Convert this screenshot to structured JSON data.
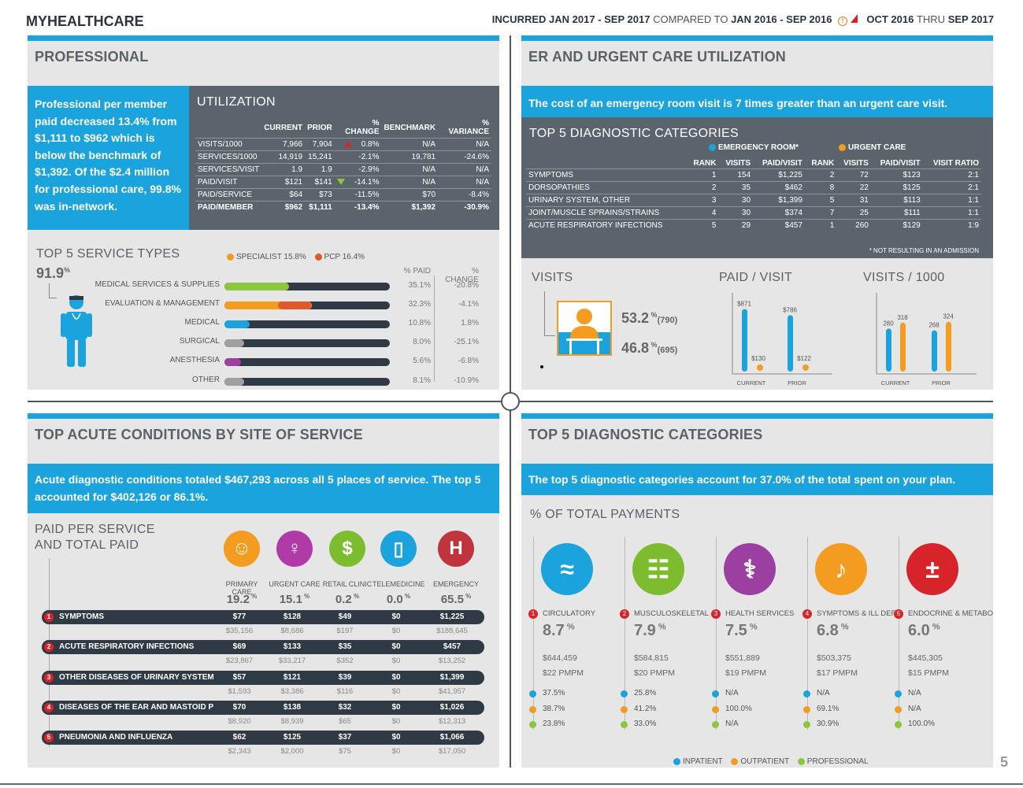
{
  "header": {
    "brand": "MYHEALTHCARE",
    "incurred_label": "INCURRED",
    "incurred_range": "JAN 2017 - SEP 2017",
    "compared_to": "COMPARED TO",
    "compare_range": "JAN 2016 - SEP 2016",
    "paid_start": "OCT 2016",
    "thru": "THRU",
    "paid_end": "SEP 2017",
    "page_number": "5"
  },
  "colors": {
    "accent": "#1aa3dc",
    "dark": "#5b646c",
    "navy": "#2f3a45",
    "red": "#d6242a",
    "orange": "#f39c1f",
    "green": "#8cc63f"
  },
  "professional": {
    "title": "PROFESSIONAL",
    "summary": "Professional per member paid decreased 13.4% from $1,111 to $962 which is below the benchmark of $1,392. Of the $2.4 million for professional care, 99.8% was in-network.",
    "utilization_title": "UTILIZATION",
    "headers": [
      "",
      "CURRENT",
      "PRIOR",
      "% CHANGE",
      "BENCHMARK",
      "% VARIANCE"
    ],
    "rows": [
      {
        "label": "VISITS/1000",
        "current": "7,966",
        "prior": "7,904",
        "change": "0.8%",
        "benchmark": "N/A",
        "variance": "N/A"
      },
      {
        "label": "SERVICES/1000",
        "current": "14,919",
        "prior": "15,241",
        "change": "-2.1%",
        "benchmark": "19,781",
        "variance": "-24.6%"
      },
      {
        "label": "SERVICES/VISIT",
        "current": "1.9",
        "prior": "1.9",
        "change": "-2.9%",
        "benchmark": "N/A",
        "variance": "N/A"
      },
      {
        "label": "PAID/VISIT",
        "current": "$121",
        "prior": "$141",
        "change": "-14.1%",
        "benchmark": "N/A",
        "variance": "N/A"
      },
      {
        "label": "PAID/SERVICE",
        "current": "$64",
        "prior": "$73",
        "change": "-11.5%",
        "benchmark": "$70",
        "variance": "-8.4%"
      },
      {
        "label": "PAID/MEMBER",
        "current": "$962",
        "prior": "$1,111",
        "change": "-13.4%",
        "benchmark": "$1,392",
        "variance": "-30.9%"
      }
    ],
    "service_types_title": "TOP 5 SERVICE TYPES",
    "service_pct": "91.9",
    "pct_sign": "%",
    "legend_specialist": "SPECIALIST 15.8%",
    "legend_pcp": "PCP 16.4%",
    "col_paid": "% PAID",
    "col_change": "% CHANGE",
    "services": [
      {
        "label": "MEDICAL SERVICES & SUPPLIES",
        "paid": "35.1%",
        "change": "-20.8%",
        "fill": 0.39,
        "color": "#8cc63f"
      },
      {
        "label": "EVALUATION & MANAGEMENT",
        "paid": "32.3%",
        "change": "-4.1%",
        "fill": 0.53,
        "color": "#f39c1f"
      },
      {
        "label": "MEDICAL",
        "paid": "10.8%",
        "change": "1.8%",
        "fill": 0.15,
        "color": "#1aa3dc"
      },
      {
        "label": "SURGICAL",
        "paid": "8.0%",
        "change": "-25.1%",
        "fill": 0.12,
        "color": "#a0a0a0"
      },
      {
        "label": "ANESTHESIA",
        "paid": "5.6%",
        "change": "-6.8%",
        "fill": 0.1,
        "color": "#9b3fa0"
      },
      {
        "label": "OTHER",
        "paid": "8.1%",
        "change": "-10.9%",
        "fill": 0.12,
        "color": "#a0a0a0"
      }
    ]
  },
  "er": {
    "title": "ER AND URGENT CARE UTILIZATION",
    "summary": "The cost of an emergency room visit is 7 times greater than an urgent care visit.",
    "diag_title": "TOP 5 DIAGNOSTIC CATEGORIES",
    "legend_er": "EMERGENCY ROOM*",
    "legend_uc": "URGENT CARE",
    "headers": [
      "",
      "RANK",
      "VISITS",
      "PAID/VISIT",
      "RANK",
      "VISITS",
      "PAID/VISIT",
      "VISIT RATIO"
    ],
    "rows": [
      {
        "label": "SYMPTOMS",
        "er_rank": "1",
        "er_visits": "154",
        "er_paid": "$1,225",
        "uc_rank": "2",
        "uc_visits": "72",
        "uc_paid": "$123",
        "ratio": "2:1"
      },
      {
        "label": "DORSOPATHIES",
        "er_rank": "2",
        "er_visits": "35",
        "er_paid": "$462",
        "uc_rank": "8",
        "uc_visits": "22",
        "uc_paid": "$125",
        "ratio": "2:1"
      },
      {
        "label": "URINARY SYSTEM, OTHER",
        "er_rank": "3",
        "er_visits": "30",
        "er_paid": "$1,399",
        "uc_rank": "5",
        "uc_visits": "31",
        "uc_paid": "$113",
        "ratio": "1:1"
      },
      {
        "label": "JOINT/MUSCLE SPRAINS/STRAINS",
        "er_rank": "4",
        "er_visits": "30",
        "er_paid": "$374",
        "uc_rank": "7",
        "uc_visits": "25",
        "uc_paid": "$111",
        "ratio": "1:1"
      },
      {
        "label": "ACUTE RESPIRATORY INFECTIONS",
        "er_rank": "5",
        "er_visits": "29",
        "er_paid": "$457",
        "uc_rank": "1",
        "uc_visits": "260",
        "uc_paid": "$129",
        "ratio": "1:9"
      }
    ],
    "footnote": "* NOT RESULTING IN AN ADMISSION",
    "visits_title": "VISITS",
    "visits_top": "53.2",
    "visits_top_count": "(790)",
    "visits_bottom": "46.8",
    "visits_bottom_count": "(695)",
    "paid_title": "PAID / VISIT",
    "per1000_title": "VISITS / 1000",
    "current_label": "CURRENT",
    "prior_label": "PRIOR"
  },
  "chart_data": [
    {
      "type": "bar",
      "title": "PAID / VISIT",
      "categories": [
        "CURRENT",
        "PRIOR"
      ],
      "series": [
        {
          "name": "EMERGENCY ROOM",
          "values": [
            871,
            786
          ]
        },
        {
          "name": "URGENT CARE",
          "values": [
            130,
            122
          ]
        }
      ],
      "labels": [
        [
          "$871",
          "$786"
        ],
        [
          "$130",
          "$122"
        ]
      ]
    },
    {
      "type": "bar",
      "title": "VISITS / 1000",
      "categories": [
        "CURRENT",
        "PRIOR"
      ],
      "series": [
        {
          "name": "EMERGENCY ROOM",
          "values": [
            280,
            268
          ]
        },
        {
          "name": "URGENT CARE",
          "values": [
            318,
            324
          ]
        }
      ]
    }
  ],
  "acute": {
    "title": "TOP ACUTE CONDITIONS BY SITE OF SERVICE",
    "summary": "Acute diagnostic conditions totaled $467,293 across all 5 places of service. The top 5 accounted for $402,126 or 86.1%.",
    "paid_title_1": "PAID PER SERVICE",
    "paid_title_2": "AND TOTAL PAID",
    "sites": [
      {
        "name": "PRIMARY CARE",
        "pct": "19.2",
        "color": "#f39c1f",
        "icon": "doctor-icon"
      },
      {
        "name": "URGENT CARE",
        "pct": "15.1",
        "color": "#b03aa6",
        "icon": "nurse-icon"
      },
      {
        "name": "RETAIL CLINIC",
        "pct": "0.2",
        "color": "#7dbb2f",
        "icon": "dollar-icon"
      },
      {
        "name": "TELEMEDICINE",
        "pct": "0.0",
        "color": "#1aa3dc",
        "icon": "phone-icon"
      },
      {
        "name": "EMERGENCY",
        "pct": "65.5",
        "color": "#c0343e",
        "icon": "hospital-icon"
      }
    ],
    "conditions": [
      {
        "num": "1",
        "name": "SYMPTOMS",
        "per": [
          "$77",
          "$128",
          "$49",
          "$0",
          "$1,225"
        ],
        "total": [
          "$35,156",
          "$8,686",
          "$197",
          "$0",
          "$188,645"
        ]
      },
      {
        "num": "2",
        "name": "ACUTE RESPIRATORY INFECTIONS",
        "per": [
          "$69",
          "$133",
          "$35",
          "$0",
          "$457"
        ],
        "total": [
          "$23,867",
          "$33,217",
          "$352",
          "$0",
          "$13,252"
        ]
      },
      {
        "num": "3",
        "name": "OTHER DISEASES OF URINARY SYSTEM",
        "per": [
          "$57",
          "$121",
          "$39",
          "$0",
          "$1,399"
        ],
        "total": [
          "$1,593",
          "$3,386",
          "$116",
          "$0",
          "$41,957"
        ]
      },
      {
        "num": "4",
        "name": "DISEASES OF THE EAR AND MASTOID P",
        "per": [
          "$70",
          "$138",
          "$32",
          "$0",
          "$1,026"
        ],
        "total": [
          "$8,920",
          "$8,939",
          "$65",
          "$0",
          "$12,313"
        ]
      },
      {
        "num": "5",
        "name": "PNEUMONIA AND INFLUENZA",
        "per": [
          "$62",
          "$125",
          "$37",
          "$0",
          "$1,066"
        ],
        "total": [
          "$2,343",
          "$2,000",
          "$75",
          "$0",
          "$17,050"
        ]
      }
    ]
  },
  "diagnostic": {
    "title": "TOP 5 DIAGNOSTIC CATEGORIES",
    "summary": "The top 5 diagnostic categories account for 37.0% of the total spent on your plan.",
    "sub_title": "% OF TOTAL PAYMENTS",
    "categories": [
      {
        "num": "1",
        "name": "CIRCULATORY",
        "pct": "8.7",
        "amount": "$644,459",
        "pmpm": "$22 PMPM",
        "inpatient": "37.5%",
        "outpatient": "38.7%",
        "professional": "23.8%",
        "color": "#1aa3dc",
        "icon": "artery-icon"
      },
      {
        "num": "2",
        "name": "MUSCULOSKELETAL",
        "pct": "7.9",
        "amount": "$584,815",
        "pmpm": "$20 PMPM",
        "inpatient": "25.8%",
        "outpatient": "41.2%",
        "professional": "33.0%",
        "color": "#7dbb2f",
        "icon": "skeleton-icon"
      },
      {
        "num": "3",
        "name": "HEALTH SERVICES",
        "pct": "7.5",
        "amount": "$551,889",
        "pmpm": "$19 PMPM",
        "inpatient": "N/A",
        "outpatient": "100.0%",
        "professional": "N/A",
        "color": "#9b3fa0",
        "icon": "caduceus-icon"
      },
      {
        "num": "4",
        "name": "SYMPTOMS & ILL DEF",
        "pct": "6.8",
        "amount": "$503,375",
        "pmpm": "$17 PMPM",
        "inpatient": "N/A",
        "outpatient": "69.1%",
        "professional": "30.9%",
        "color": "#f39c1f",
        "icon": "stethoscope-icon"
      },
      {
        "num": "5",
        "name": "ENDOCRINE & METABOLIC",
        "pct": "6.0",
        "amount": "$445,305",
        "pmpm": "$15 PMPM",
        "inpatient": "N/A",
        "outpatient": "N/A",
        "professional": "100.0%",
        "color": "#d6242a",
        "icon": "blood-drop-icon"
      }
    ],
    "legend": [
      "INPATIENT",
      "OUTPATIENT",
      "PROFESSIONAL"
    ]
  }
}
